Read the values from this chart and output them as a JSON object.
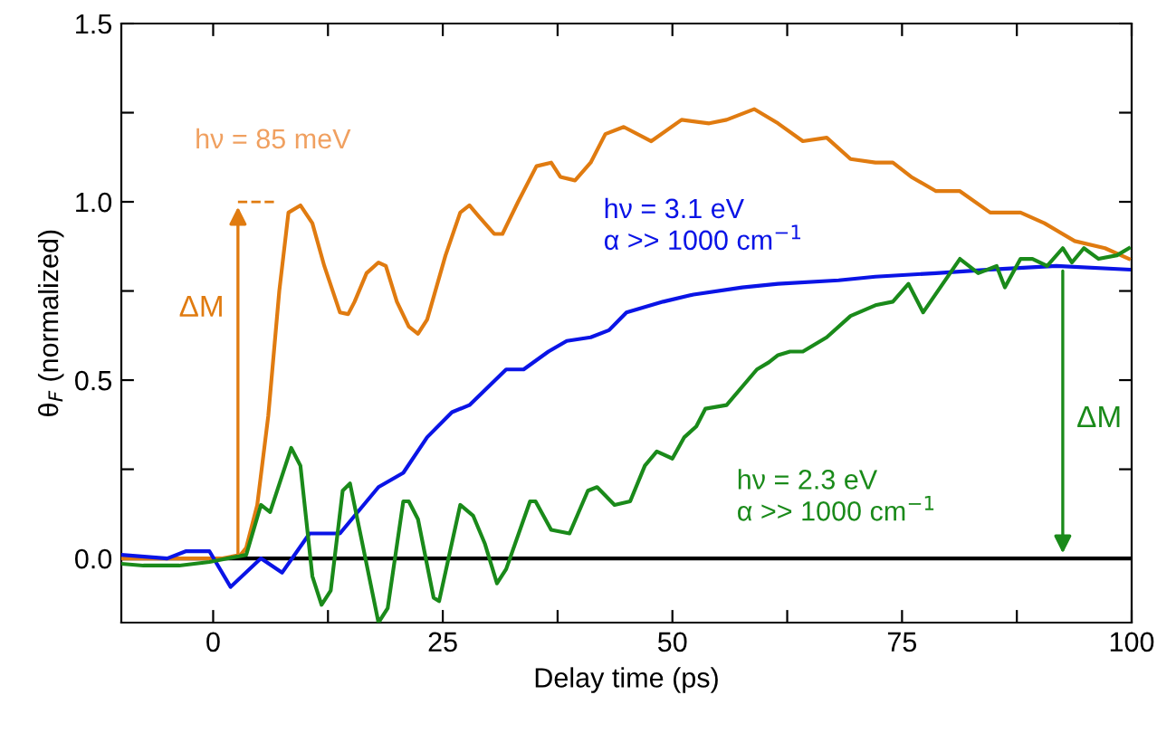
{
  "chart_data": {
    "type": "line",
    "xlabel": "Delay time (ps)",
    "ylabel": "θ$_{F}$ (normalized)",
    "xlim": [
      -10,
      100
    ],
    "ylim": [
      -0.18,
      1.5
    ],
    "xticks": [
      0,
      {
        "value": 12.5,
        "label": null
      },
      25,
      {
        "value": 37.5,
        "label": null
      },
      50,
      {
        "value": 62.5,
        "label": null
      },
      75,
      {
        "value": 87.5,
        "label": null
      },
      100
    ],
    "yticks": [
      {
        "value": 0,
        "label": "0.0"
      },
      {
        "value": 0.25,
        "label": null
      },
      {
        "value": 0.5,
        "label": "0.5"
      },
      {
        "value": 0.75,
        "label": null
      },
      {
        "value": 1,
        "label": "1.0"
      },
      {
        "value": 1.25,
        "label": null
      },
      {
        "value": 1.5,
        "label": "1.5"
      }
    ],
    "grid": false,
    "legend": false,
    "line_style": "solid",
    "marker": "none",
    "ref_lines": [
      {
        "axis": "y",
        "value": 0,
        "color": "#000000",
        "line_style": "solid"
      }
    ],
    "annotations": [
      "ΔM",
      "ΔM"
    ],
    "series": [
      {
        "name": "hν = 85 meV",
        "color": "#e07b10",
        "x": [
          -10,
          -6,
          -2,
          1,
          3,
          3.6,
          4.8,
          6,
          7.2,
          8.2,
          9.5,
          10.8,
          12.1,
          13.8,
          14.7,
          15.4,
          16.7,
          18,
          18.8,
          20,
          21.3,
          22.3,
          23.3,
          25.3,
          26.9,
          27.9,
          28.9,
          30.6,
          31.5,
          33.2,
          35.2,
          36.8,
          37.8,
          39.4,
          41.1,
          42.7,
          44.7,
          47.7,
          51,
          54,
          55.9,
          58.9,
          61.5,
          64.2,
          66.8,
          69.4,
          72.1,
          74,
          76,
          78.7,
          81.3,
          84.6,
          87.9,
          90.5,
          93.8,
          97.1,
          99.7
        ],
        "values": [
          0.0,
          0.0,
          0.0,
          0.0,
          0.01,
          0.03,
          0.15,
          0.4,
          0.75,
          0.97,
          0.99,
          0.94,
          0.82,
          0.69,
          0.685,
          0.72,
          0.8,
          0.83,
          0.82,
          0.72,
          0.65,
          0.63,
          0.67,
          0.85,
          0.97,
          0.99,
          0.96,
          0.91,
          0.91,
          1.0,
          1.1,
          1.11,
          1.07,
          1.06,
          1.11,
          1.19,
          1.21,
          1.17,
          1.23,
          1.22,
          1.23,
          1.26,
          1.22,
          1.17,
          1.18,
          1.12,
          1.11,
          1.11,
          1.07,
          1.03,
          1.03,
          0.97,
          0.97,
          0.94,
          0.89,
          0.87,
          0.84
        ]
      },
      {
        "name": "hν = 3.1 eV\nα >> 1000 cm$^{−1}$",
        "color": "#0a14e6",
        "x": [
          -10,
          -5,
          -3,
          -0.4,
          1.9,
          5.2,
          7.5,
          10.5,
          13.8,
          18,
          20.7,
          23.3,
          26,
          27.9,
          31.9,
          33.8,
          36.5,
          38.5,
          41.1,
          43.1,
          45,
          49,
          52.3,
          57.6,
          61.5,
          68.1,
          72.1,
          78.7,
          84.6,
          91.8,
          99.7
        ],
        "values": [
          0.01,
          0.0,
          0.02,
          0.02,
          -0.08,
          0.0,
          -0.04,
          0.07,
          0.07,
          0.2,
          0.24,
          0.34,
          0.41,
          0.43,
          0.53,
          0.53,
          0.58,
          0.61,
          0.62,
          0.64,
          0.69,
          0.72,
          0.74,
          0.76,
          0.77,
          0.78,
          0.79,
          0.8,
          0.81,
          0.82,
          0.81
        ]
      },
      {
        "name": "hν = 2.3 eV\nα >> 1000 cm$^{−1}$",
        "color": "#1a8a1a",
        "x": [
          -10,
          -7.6,
          -3.7,
          -0.4,
          3.6,
          5.2,
          6.2,
          8.5,
          9.5,
          10.8,
          11.8,
          12.8,
          14.1,
          14.9,
          16.1,
          18,
          19,
          20.7,
          21.3,
          22.3,
          24,
          24.6,
          26.9,
          28.3,
          29.6,
          30.9,
          31.9,
          34.5,
          35.1,
          36.8,
          38.8,
          40.8,
          41.8,
          43.7,
          45.4,
          47,
          48.3,
          50,
          51.3,
          52.6,
          53.6,
          55.9,
          59.2,
          60.5,
          61.5,
          62.8,
          64.2,
          66.8,
          69.4,
          72.1,
          74,
          75.7,
          77.3,
          81.3,
          83.3,
          85.3,
          86.2,
          87.9,
          89.2,
          90.8,
          92.5,
          93.5,
          94.8,
          96.4,
          98.4,
          99.7
        ],
        "values": [
          -0.015,
          -0.02,
          -0.02,
          -0.01,
          0.01,
          0.15,
          0.13,
          0.31,
          0.26,
          -0.05,
          -0.13,
          -0.09,
          0.19,
          0.21,
          0.06,
          -0.18,
          -0.14,
          0.16,
          0.16,
          0.11,
          -0.11,
          -0.12,
          0.15,
          0.12,
          0.04,
          -0.07,
          -0.03,
          0.16,
          0.16,
          0.08,
          0.07,
          0.19,
          0.2,
          0.15,
          0.16,
          0.26,
          0.3,
          0.28,
          0.34,
          0.37,
          0.42,
          0.43,
          0.53,
          0.55,
          0.57,
          0.58,
          0.58,
          0.62,
          0.68,
          0.71,
          0.72,
          0.77,
          0.69,
          0.84,
          0.8,
          0.82,
          0.76,
          0.84,
          0.84,
          0.82,
          0.87,
          0.83,
          0.87,
          0.84,
          0.85,
          0.87
        ]
      }
    ]
  }
}
